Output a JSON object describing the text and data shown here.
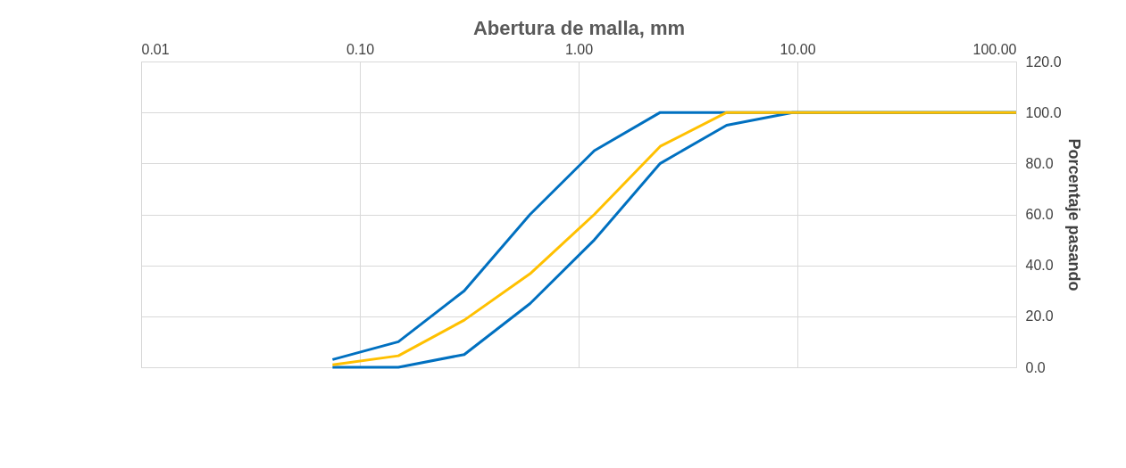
{
  "chart_data": {
    "type": "line",
    "xlabel": "Abertura de malla, mm",
    "y2label": "Porcentaje pasando",
    "log": "x",
    "grid": true,
    "marker": "none",
    "line_style": "solid",
    "xlim": [
      0.01,
      100
    ],
    "xticks": [
      {
        "value": 0.01,
        "label": "0.01"
      },
      {
        "value": 0.1,
        "label": "0.10"
      },
      {
        "value": 1,
        "label": "1.00"
      },
      {
        "value": 10,
        "label": "10.00"
      },
      {
        "value": 100,
        "label": "100.00"
      }
    ],
    "y2lim": [
      0,
      120
    ],
    "y2ticks": [
      {
        "value": 0,
        "label": "0.0"
      },
      {
        "value": 20,
        "label": "20.0"
      },
      {
        "value": 40,
        "label": "40.0"
      },
      {
        "value": 60,
        "label": "60.0"
      },
      {
        "value": 80,
        "label": "80.0"
      },
      {
        "value": 100,
        "label": "100.0"
      },
      {
        "value": 120,
        "label": "120.0"
      }
    ],
    "series": [
      {
        "color": "#0070c0",
        "axis": "y2",
        "x": [
          0.075,
          0.15,
          0.3,
          0.6,
          1.18,
          2.36,
          4.75,
          9.5,
          100
        ],
        "values": [
          3,
          10,
          30,
          60,
          85,
          100,
          100,
          100,
          100
        ]
      },
      {
        "color": "#0070c0",
        "axis": "y2",
        "x": [
          0.075,
          0.15,
          0.3,
          0.6,
          1.18,
          2.36,
          4.75,
          9.5,
          100
        ],
        "values": [
          0,
          0,
          5,
          25,
          50,
          80,
          95,
          100,
          100
        ]
      },
      {
        "color": "#ffc000",
        "axis": "y2",
        "x": [
          0.075,
          0.15,
          0.3,
          0.6,
          1.18,
          2.36,
          4.75,
          9.5,
          100
        ],
        "values": [
          1,
          4.5,
          18.5,
          36.7,
          60,
          86.7,
          100,
          100,
          100
        ]
      }
    ]
  }
}
